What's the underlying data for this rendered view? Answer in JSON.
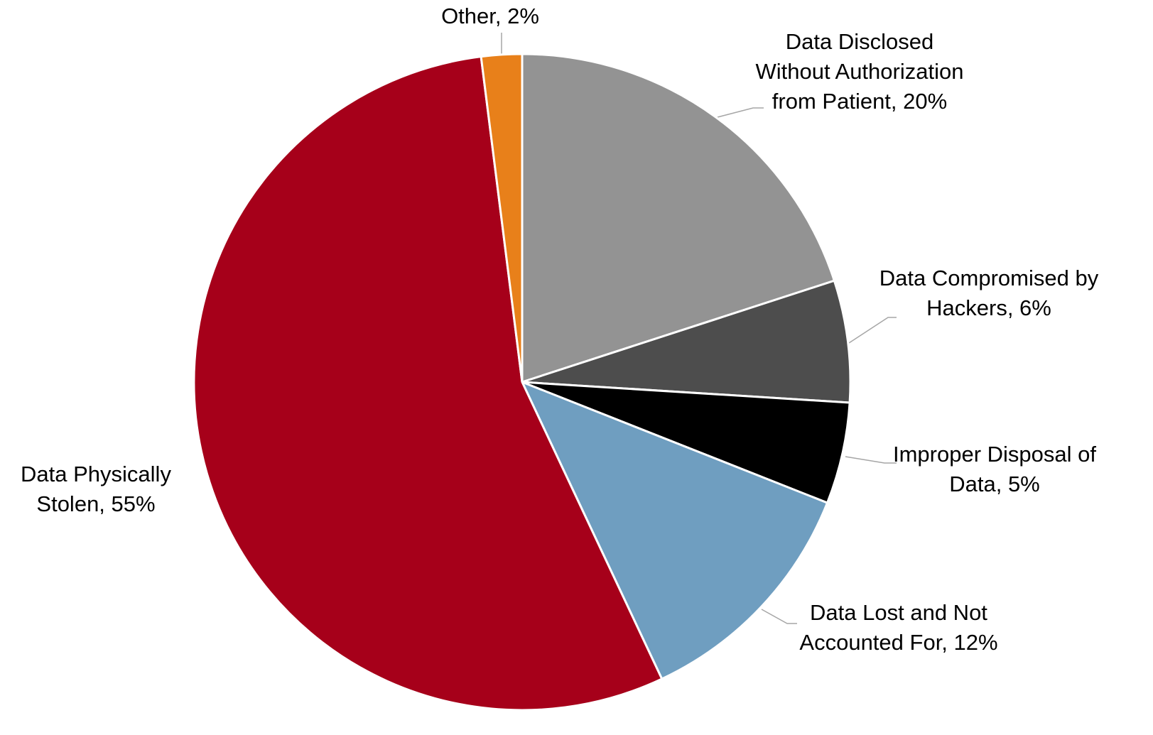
{
  "chart_data": {
    "type": "pie",
    "values": [
      20,
      6,
      5,
      12,
      55,
      2
    ],
    "value_labels": [
      "Data Disclosed Without Authorization from Patient, 20%",
      "Data Compromised by Hackers, 6%",
      "Improper Disposal of Data, 5%",
      "Data Lost and Not Accounted For, 12%",
      "Data Physically Stolen, 55%",
      "Other, 2%"
    ],
    "colors": [
      "#939393",
      "#4d4d4d",
      "#000000",
      "#6f9ec0",
      "#a6001a",
      "#e8801a"
    ]
  }
}
